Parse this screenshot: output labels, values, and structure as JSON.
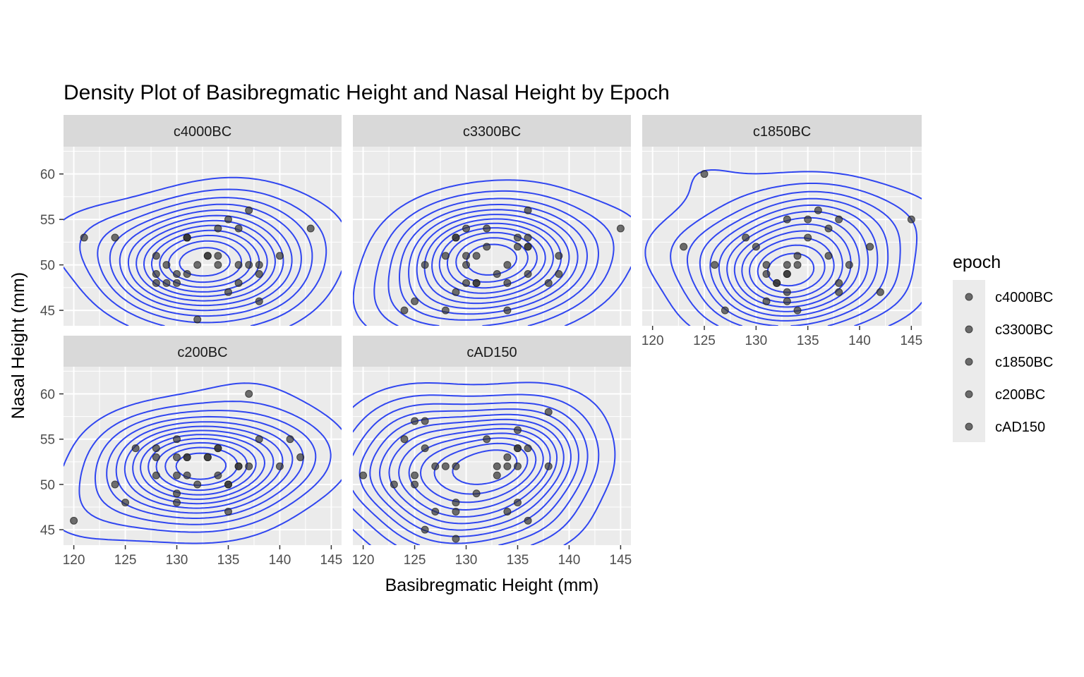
{
  "chart_data": {
    "type": "scatter",
    "title": "Density Plot of Basibregmatic Height and Nasal Height by Epoch",
    "xlabel": "Basibregmatic Height (mm)",
    "ylabel": "Nasal Height (mm)",
    "xlim": [
      119,
      146
    ],
    "ylim": [
      43.3,
      63
    ],
    "x_ticks": [
      120,
      125,
      130,
      135,
      140,
      145
    ],
    "y_ticks": [
      45,
      50,
      55,
      60
    ],
    "grid": true,
    "overlay": "2d density contours",
    "contour_color": "#3046f0",
    "point_color": "#333333",
    "legend": {
      "title": "epoch",
      "position": "right",
      "entries": [
        "c4000BC",
        "c3300BC",
        "c1850BC",
        "c200BC",
        "cAD150"
      ]
    },
    "panels": [
      {
        "name": "c4000BC",
        "points": [
          [
            121,
            53
          ],
          [
            124,
            53
          ],
          [
            128,
            51
          ],
          [
            128,
            49
          ],
          [
            128,
            48
          ],
          [
            129,
            48
          ],
          [
            129,
            50
          ],
          [
            130,
            49
          ],
          [
            130,
            48
          ],
          [
            131,
            53
          ],
          [
            131,
            53
          ],
          [
            131,
            53
          ],
          [
            133,
            51
          ],
          [
            133,
            51
          ],
          [
            134,
            51
          ],
          [
            134,
            50
          ],
          [
            134,
            54
          ],
          [
            135,
            55
          ],
          [
            135,
            47
          ],
          [
            136,
            50
          ],
          [
            136,
            54
          ],
          [
            136,
            48
          ],
          [
            137,
            50
          ],
          [
            137,
            56
          ],
          [
            138,
            50
          ],
          [
            138,
            49
          ],
          [
            138,
            46
          ],
          [
            140,
            51
          ],
          [
            143,
            54
          ],
          [
            132,
            44
          ],
          [
            132,
            50
          ],
          [
            131,
            49
          ]
        ]
      },
      {
        "name": "c3300BC",
        "points": [
          [
            124,
            45
          ],
          [
            125,
            46
          ],
          [
            126,
            50
          ],
          [
            128,
            45
          ],
          [
            128,
            51
          ],
          [
            129,
            47
          ],
          [
            129,
            53
          ],
          [
            130,
            51
          ],
          [
            130,
            54
          ],
          [
            130,
            50
          ],
          [
            130,
            48
          ],
          [
            131,
            48
          ],
          [
            131,
            51
          ],
          [
            132,
            52
          ],
          [
            132,
            54
          ],
          [
            133,
            49
          ],
          [
            134,
            50
          ],
          [
            134,
            48
          ],
          [
            134,
            45
          ],
          [
            135,
            53
          ],
          [
            135,
            52
          ],
          [
            136,
            53
          ],
          [
            136,
            52
          ],
          [
            136,
            52
          ],
          [
            136,
            49
          ],
          [
            136,
            56
          ],
          [
            138,
            48
          ],
          [
            139,
            49
          ],
          [
            139,
            51
          ],
          [
            145,
            54
          ],
          [
            131,
            48
          ],
          [
            129,
            53
          ]
        ]
      },
      {
        "name": "c1850BC",
        "points": [
          [
            123,
            52
          ],
          [
            125,
            60
          ],
          [
            126,
            50
          ],
          [
            127,
            45
          ],
          [
            129,
            53
          ],
          [
            130,
            52
          ],
          [
            131,
            50
          ],
          [
            131,
            49
          ],
          [
            131,
            46
          ],
          [
            132,
            48
          ],
          [
            133,
            49
          ],
          [
            133,
            49
          ],
          [
            133,
            47
          ],
          [
            133,
            50
          ],
          [
            133,
            46
          ],
          [
            134,
            51
          ],
          [
            134,
            50
          ],
          [
            134,
            45
          ],
          [
            135,
            55
          ],
          [
            135,
            53
          ],
          [
            136,
            56
          ],
          [
            137,
            51
          ],
          [
            137,
            54
          ],
          [
            138,
            55
          ],
          [
            138,
            48
          ],
          [
            138,
            47
          ],
          [
            139,
            50
          ],
          [
            141,
            52
          ],
          [
            142,
            47
          ],
          [
            145,
            55
          ],
          [
            133,
            55
          ],
          [
            132,
            48
          ]
        ]
      },
      {
        "name": "c200BC",
        "points": [
          [
            120,
            46
          ],
          [
            124,
            50
          ],
          [
            125,
            48
          ],
          [
            126,
            54
          ],
          [
            128,
            54
          ],
          [
            128,
            51
          ],
          [
            128,
            53
          ],
          [
            130,
            55
          ],
          [
            130,
            53
          ],
          [
            130,
            51
          ],
          [
            130,
            49
          ],
          [
            130,
            48
          ],
          [
            131,
            53
          ],
          [
            131,
            53
          ],
          [
            131,
            51
          ],
          [
            132,
            50
          ],
          [
            133,
            53
          ],
          [
            134,
            54
          ],
          [
            134,
            54
          ],
          [
            134,
            51
          ],
          [
            135,
            50
          ],
          [
            135,
            50
          ],
          [
            135,
            47
          ],
          [
            136,
            52
          ],
          [
            136,
            52
          ],
          [
            137,
            52
          ],
          [
            137,
            60
          ],
          [
            138,
            55
          ],
          [
            140,
            52
          ],
          [
            141,
            55
          ],
          [
            142,
            53
          ],
          [
            133,
            53
          ]
        ]
      },
      {
        "name": "cAD150",
        "points": [
          [
            120,
            51
          ],
          [
            123,
            50
          ],
          [
            124,
            55
          ],
          [
            125,
            57
          ],
          [
            125,
            51
          ],
          [
            125,
            50
          ],
          [
            126,
            57
          ],
          [
            126,
            54
          ],
          [
            126,
            45
          ],
          [
            127,
            47
          ],
          [
            127,
            52
          ],
          [
            128,
            52
          ],
          [
            129,
            48
          ],
          [
            129,
            47
          ],
          [
            129,
            44
          ],
          [
            131,
            49
          ],
          [
            132,
            55
          ],
          [
            133,
            51
          ],
          [
            134,
            53
          ],
          [
            134,
            52
          ],
          [
            134,
            47
          ],
          [
            135,
            54
          ],
          [
            135,
            54
          ],
          [
            135,
            52
          ],
          [
            135,
            56
          ],
          [
            135,
            48
          ],
          [
            136,
            54
          ],
          [
            136,
            46
          ],
          [
            138,
            58
          ],
          [
            138,
            52
          ],
          [
            133,
            52
          ],
          [
            129,
            52
          ]
        ]
      }
    ]
  }
}
